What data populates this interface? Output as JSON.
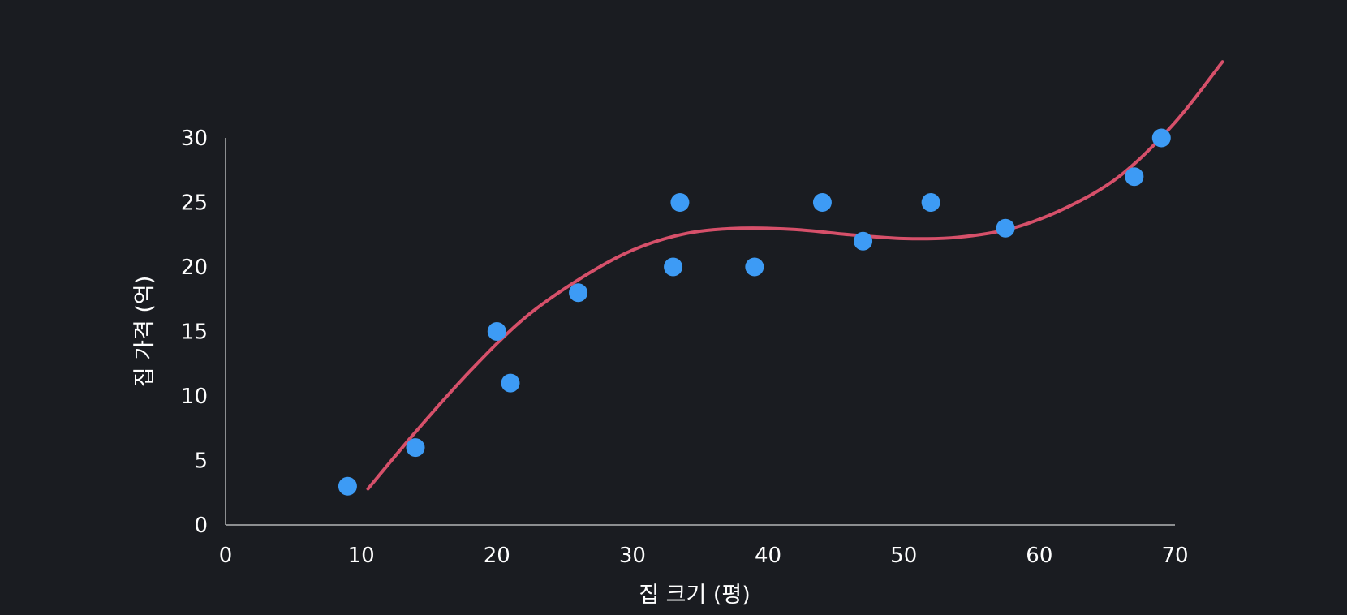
{
  "chart_data": {
    "type": "scatter",
    "xlabel": "집 크기 (평)",
    "ylabel": "집 가격 (억)",
    "xlim": [
      0,
      70
    ],
    "ylim": [
      0,
      30
    ],
    "x_ticks": [
      "0",
      "10",
      "20",
      "30",
      "40",
      "50",
      "60",
      "70"
    ],
    "y_ticks": [
      "0",
      "5",
      "10",
      "15",
      "20",
      "25",
      "30"
    ],
    "grid": false,
    "legend": "none",
    "colors": {
      "background": "#1a1c21",
      "points": "#3d9bf5",
      "curve": "#d6506a",
      "axis": "#ffffff",
      "text": "#ffffff"
    },
    "series": [
      {
        "kind": "points",
        "x": [
          9,
          14,
          20,
          21,
          26,
          33,
          33.5,
          39,
          44,
          47,
          52,
          57.5,
          67,
          69
        ],
        "y": [
          3,
          6,
          15,
          11,
          18,
          20,
          25,
          20,
          25,
          22,
          25,
          23,
          27,
          30
        ]
      },
      {
        "kind": "fit-curve",
        "x": [
          10.5,
          14,
          18,
          22,
          26,
          30,
          34,
          38,
          42,
          46,
          50,
          54,
          58,
          62,
          66,
          70,
          73.5
        ],
        "y": [
          2.8,
          7.2,
          11.9,
          16.0,
          19.0,
          21.3,
          22.6,
          23.0,
          22.9,
          22.5,
          22.2,
          22.3,
          23.0,
          24.6,
          27.1,
          31.2,
          35.9
        ]
      }
    ]
  }
}
